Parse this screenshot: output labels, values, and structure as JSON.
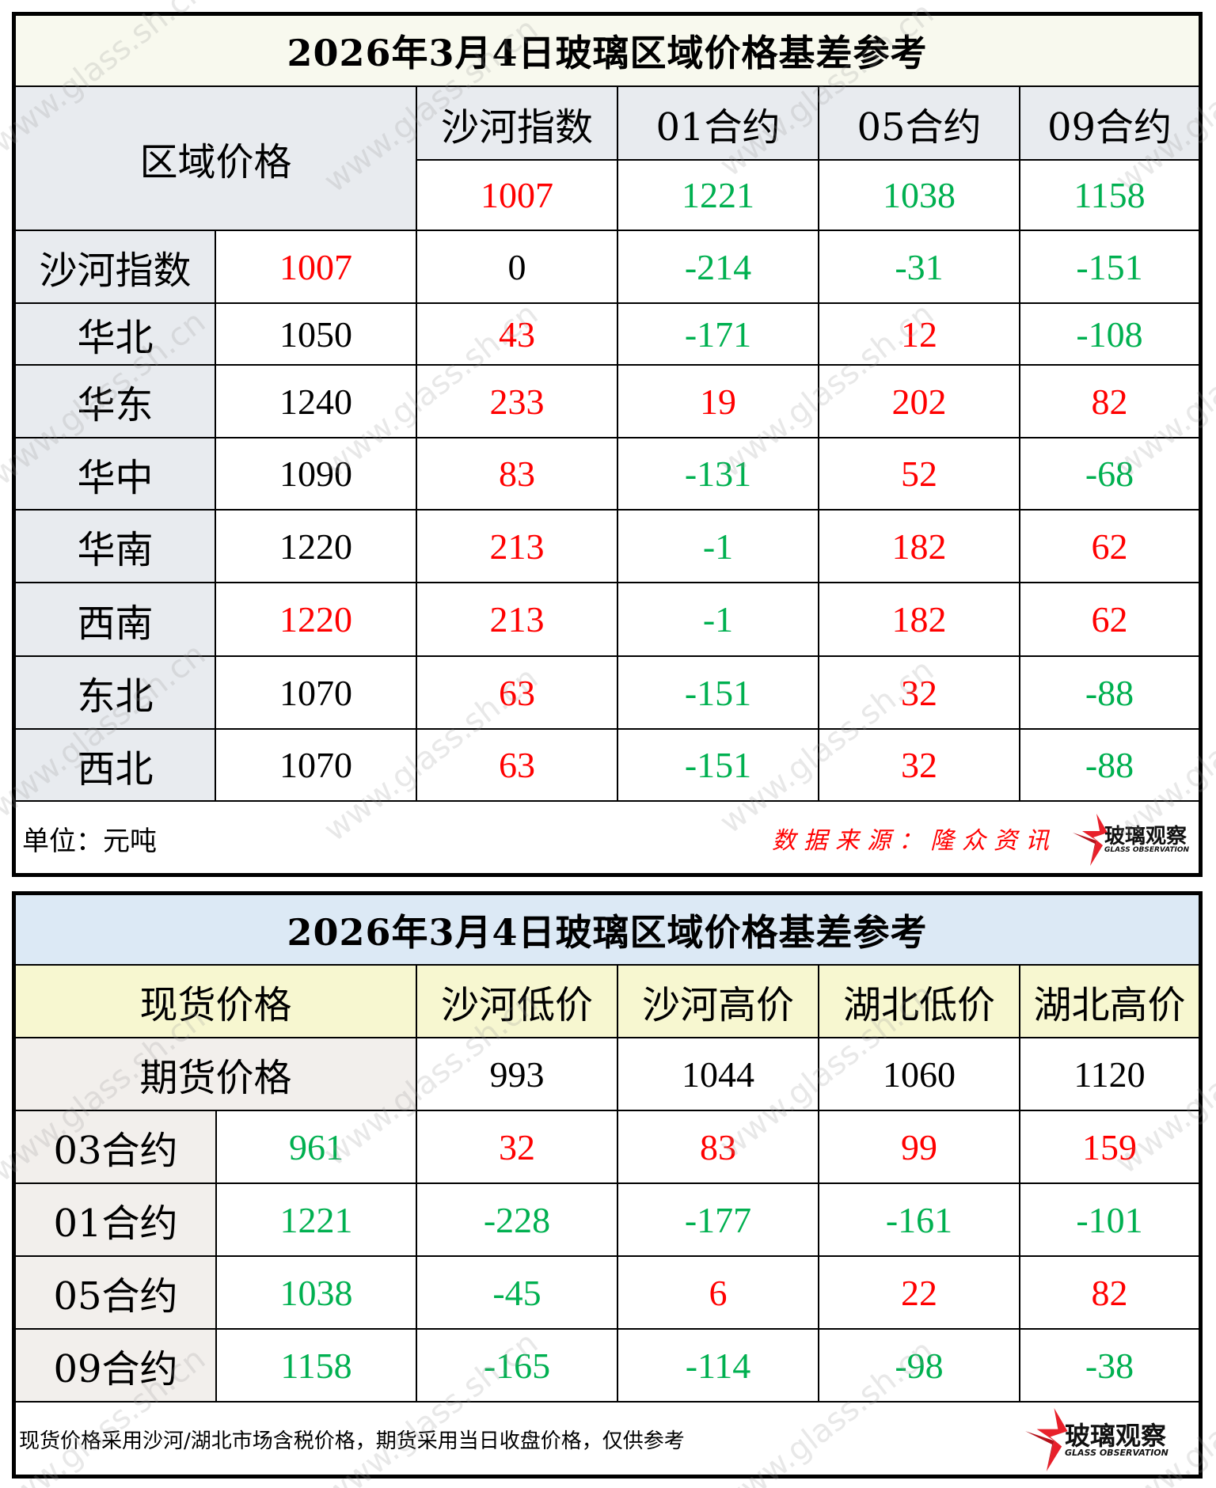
{
  "colors": {
    "positive": "#ff0000",
    "negative": "#00b050",
    "neutral": "#000000"
  },
  "table1": {
    "title": "2026年3月4日玻璃区域价格基差参考",
    "corner_label": "区域价格",
    "columns": [
      {
        "label": "沙河指数",
        "value": "1007",
        "color": "red"
      },
      {
        "label": "01合约",
        "value": "1221",
        "color": "green"
      },
      {
        "label": "05合约",
        "value": "1038",
        "color": "green"
      },
      {
        "label": "09合约",
        "value": "1158",
        "color": "green"
      }
    ],
    "rows": [
      {
        "region": "沙河指数",
        "price": "1007",
        "price_color": "red",
        "cells": [
          {
            "v": "0",
            "c": "black"
          },
          {
            "v": "-214",
            "c": "green"
          },
          {
            "v": "-31",
            "c": "green"
          },
          {
            "v": "-151",
            "c": "green"
          }
        ]
      },
      {
        "region": "华北",
        "price": "1050",
        "price_color": "black",
        "cells": [
          {
            "v": "43",
            "c": "red"
          },
          {
            "v": "-171",
            "c": "green"
          },
          {
            "v": "12",
            "c": "red"
          },
          {
            "v": "-108",
            "c": "green"
          }
        ]
      },
      {
        "region": "华东",
        "price": "1240",
        "price_color": "black",
        "cells": [
          {
            "v": "233",
            "c": "red"
          },
          {
            "v": "19",
            "c": "red"
          },
          {
            "v": "202",
            "c": "red"
          },
          {
            "v": "82",
            "c": "red"
          }
        ]
      },
      {
        "region": "华中",
        "price": "1090",
        "price_color": "black",
        "cells": [
          {
            "v": "83",
            "c": "red"
          },
          {
            "v": "-131",
            "c": "green"
          },
          {
            "v": "52",
            "c": "red"
          },
          {
            "v": "-68",
            "c": "green"
          }
        ]
      },
      {
        "region": "华南",
        "price": "1220",
        "price_color": "black",
        "cells": [
          {
            "v": "213",
            "c": "red"
          },
          {
            "v": "-1",
            "c": "green"
          },
          {
            "v": "182",
            "c": "red"
          },
          {
            "v": "62",
            "c": "red"
          }
        ]
      },
      {
        "region": "西南",
        "price": "1220",
        "price_color": "red",
        "cells": [
          {
            "v": "213",
            "c": "red"
          },
          {
            "v": "-1",
            "c": "green"
          },
          {
            "v": "182",
            "c": "red"
          },
          {
            "v": "62",
            "c": "red"
          }
        ]
      },
      {
        "region": "东北",
        "price": "1070",
        "price_color": "black",
        "cells": [
          {
            "v": "63",
            "c": "red"
          },
          {
            "v": "-151",
            "c": "green"
          },
          {
            "v": "32",
            "c": "red"
          },
          {
            "v": "-88",
            "c": "green"
          }
        ]
      },
      {
        "region": "西北",
        "price": "1070",
        "price_color": "black",
        "cells": [
          {
            "v": "63",
            "c": "red"
          },
          {
            "v": "-151",
            "c": "green"
          },
          {
            "v": "32",
            "c": "red"
          },
          {
            "v": "-88",
            "c": "green"
          }
        ]
      }
    ],
    "footer": {
      "unit": "单位：元吨",
      "source": "数据来源：隆众资讯",
      "logo_cn": "玻璃观察",
      "logo_en": "GLASS OBSERVATION"
    }
  },
  "table2": {
    "title": "2026年3月4日玻璃区域价格基差参考",
    "spot_label": "现货价格",
    "futures_label": "期货价格",
    "columns": [
      {
        "label": "沙河低价",
        "value": "993"
      },
      {
        "label": "沙河高价",
        "value": "1044"
      },
      {
        "label": "湖北低价",
        "value": "1060"
      },
      {
        "label": "湖北高价",
        "value": "1120"
      }
    ],
    "rows": [
      {
        "contract": "03合约",
        "price": "961",
        "cells": [
          {
            "v": "32",
            "c": "red"
          },
          {
            "v": "83",
            "c": "red"
          },
          {
            "v": "99",
            "c": "red"
          },
          {
            "v": "159",
            "c": "red"
          }
        ]
      },
      {
        "contract": "01合约",
        "price": "1221",
        "cells": [
          {
            "v": "-228",
            "c": "green"
          },
          {
            "v": "-177",
            "c": "green"
          },
          {
            "v": "-161",
            "c": "green"
          },
          {
            "v": "-101",
            "c": "green"
          }
        ]
      },
      {
        "contract": "05合约",
        "price": "1038",
        "cells": [
          {
            "v": "-45",
            "c": "green"
          },
          {
            "v": "6",
            "c": "red"
          },
          {
            "v": "22",
            "c": "red"
          },
          {
            "v": "82",
            "c": "red"
          }
        ]
      },
      {
        "contract": "09合约",
        "price": "1158",
        "cells": [
          {
            "v": "-165",
            "c": "green"
          },
          {
            "v": "-114",
            "c": "green"
          },
          {
            "v": "-98",
            "c": "green"
          },
          {
            "v": "-38",
            "c": "green"
          }
        ]
      }
    ],
    "footer": {
      "note": "现货价格采用沙河/湖北市场含税价格，期货采用当日收盘价格，仅供参考",
      "logo_cn": "玻璃观察",
      "logo_en": "GLASS OBSERVATION"
    }
  },
  "watermark": "www.glass.sh.cn"
}
